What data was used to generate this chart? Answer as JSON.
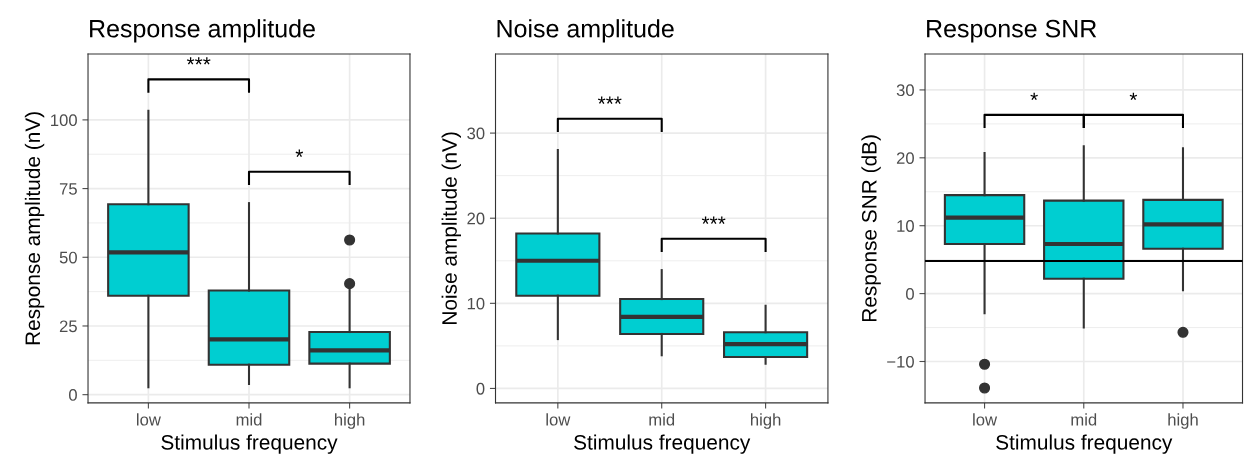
{
  "chart_data": [
    {
      "type": "box",
      "title": "Response amplitude",
      "xlabel": "Stimulus frequency",
      "ylabel": "Response amplitude (nV)",
      "categories": [
        "low",
        "mid",
        "high"
      ],
      "color": "#00ced1",
      "ylim": [
        -3,
        124
      ],
      "yticks": [
        0,
        25,
        50,
        75,
        100
      ],
      "grid": true,
      "boxes": [
        {
          "low": 2.7,
          "q1": 36,
          "median": 51.8,
          "q3": 69.3,
          "high": 103.3
        },
        {
          "low": 3.9,
          "q1": 10.9,
          "median": 20.1,
          "q3": 37.9,
          "high": 69.7
        },
        {
          "low": 2.7,
          "q1": 11.3,
          "median": 16.1,
          "q3": 22.8,
          "high": 39,
          "outliers": [
            40.4,
            56.3
          ]
        }
      ],
      "annotations": [
        "***",
        "*"
      ]
    },
    {
      "type": "box",
      "title": "Noise amplitude",
      "xlabel": "Stimulus frequency",
      "ylabel": "Noise amplitude (nV)",
      "categories": [
        "low",
        "mid",
        "high"
      ],
      "color": "#00ced1",
      "ylim": [
        -1.7,
        39.3
      ],
      "yticks": [
        0,
        10,
        20,
        30
      ],
      "grid": true,
      "boxes": [
        {
          "low": 5.8,
          "q1": 10.9,
          "median": 15.0,
          "q3": 18.2,
          "high": 28.0
        },
        {
          "low": 3.9,
          "q1": 6.4,
          "median": 8.4,
          "q3": 10.5,
          "high": 13.9
        },
        {
          "low": 2.9,
          "q1": 3.7,
          "median": 5.2,
          "q3": 6.6,
          "high": 9.7
        }
      ],
      "annotations": [
        "***",
        "***"
      ]
    },
    {
      "type": "box",
      "title": "Response SNR",
      "xlabel": "Stimulus frequency",
      "ylabel": "Response SNR (dB)",
      "categories": [
        "low",
        "mid",
        "high"
      ],
      "color": "#00ced1",
      "ylim": [
        -16.1,
        35.3
      ],
      "yticks": [
        {
          "value": -10,
          "label": "−10"
        },
        0,
        10,
        20,
        30
      ],
      "grid": true,
      "boxes": [
        {
          "low": -2.9,
          "q1": 7.3,
          "median": 11.2,
          "q3": 14.5,
          "high": 20.7,
          "outliers": [
            -10.4,
            -13.9
          ]
        },
        {
          "low": -5.0,
          "q1": 2.2,
          "median": 7.3,
          "q3": 13.7,
          "high": 21.7
        },
        {
          "low": 0.5,
          "q1": 6.6,
          "median": 10.2,
          "q3": 13.8,
          "high": 21.4,
          "outliers": [
            -5.7
          ]
        }
      ],
      "ref_lines": [
        {
          "axis": "y",
          "value": 4.8,
          "color": "#000000"
        }
      ],
      "annotations": [
        "*",
        "*"
      ]
    }
  ]
}
